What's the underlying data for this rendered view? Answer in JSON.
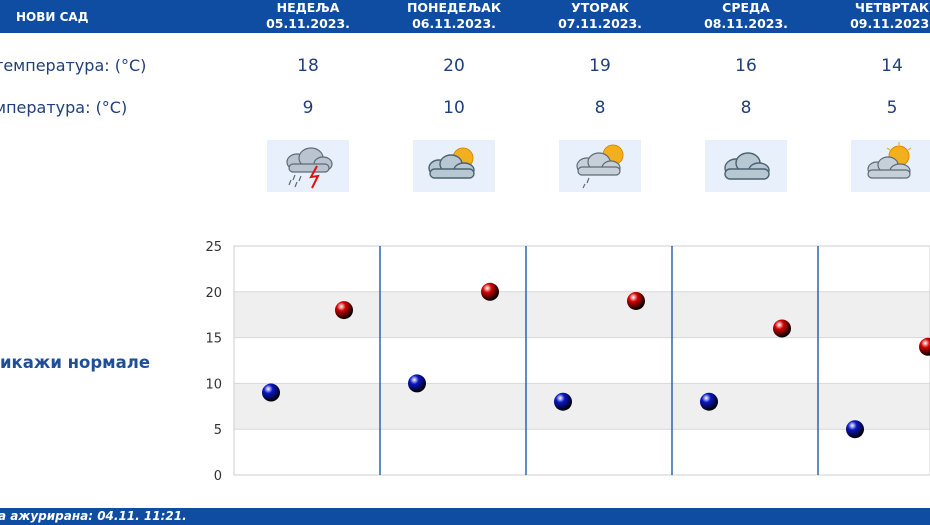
{
  "header": {
    "city": "НОВИ САД",
    "days": [
      {
        "name": "НЕДЕЉА",
        "date": "05.11.2023."
      },
      {
        "name": "ПОНЕДЕЉАК",
        "date": "06.11.2023."
      },
      {
        "name": "УТОРАК",
        "date": "07.11.2023."
      },
      {
        "name": "СРЕДА",
        "date": "08.11.2023."
      },
      {
        "name": "ЧЕТВРТАК",
        "date": "09.11.2023."
      }
    ]
  },
  "rows": {
    "max_label": "температура: (°C)",
    "min_label": "мпература: (°C)",
    "icon_label": ":",
    "max_values": [
      "18",
      "20",
      "19",
      "16",
      "14"
    ],
    "min_values": [
      "9",
      "10",
      "8",
      "8",
      "5"
    ],
    "icons": [
      "cloud-rain-lightning-icon",
      "partly-cloudy-icon",
      "partly-cloudy-rain-icon",
      "cloudy-icon",
      "partly-cloudy-icon"
    ]
  },
  "normals_link": "икажи нормале",
  "footer": {
    "updated": "а ажурирана:  04.11.  11:21."
  },
  "colors": {
    "header_bg": "#0f4da3",
    "max_dot": "#d40000",
    "min_dot": "#0a16c8",
    "grid_band": "#efefef",
    "divider": "#0f4da3"
  },
  "chart_data": {
    "type": "scatter",
    "categories": [
      "05.11.2023.",
      "06.11.2023.",
      "07.11.2023.",
      "08.11.2023.",
      "09.11.2023."
    ],
    "series": [
      {
        "values": [
          18,
          20,
          19,
          16,
          14
        ],
        "color": "#d40000"
      },
      {
        "values": [
          9,
          10,
          8,
          8,
          5
        ],
        "color": "#0a16c8"
      }
    ],
    "ylim": [
      0,
      25
    ],
    "yticks": [
      "0",
      "5",
      "10",
      "15",
      "20",
      "25"
    ],
    "grid": true
  }
}
